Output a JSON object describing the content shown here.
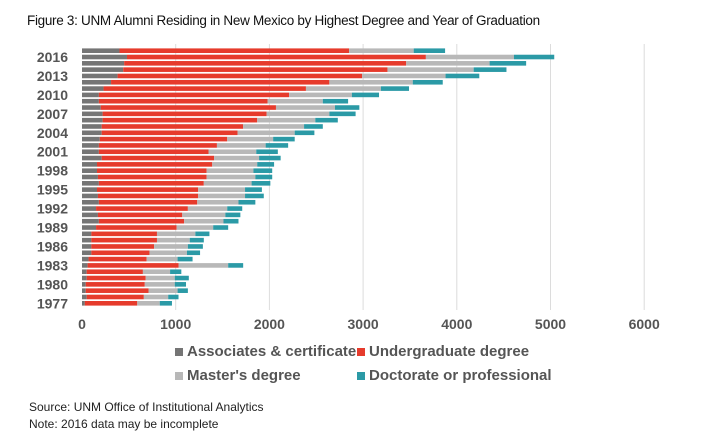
{
  "chart_data": {
    "type": "bar",
    "orientation": "horizontal",
    "stacked": true,
    "title": "Figure 3: UNM Alumni Residing in New Mexico by Highest Degree and Year of Graduation",
    "xlabel": "",
    "ylabel": "",
    "xlim": [
      0,
      6000
    ],
    "xticks": [
      "0",
      "1000",
      "2000",
      "3000",
      "4000",
      "5000",
      "6000"
    ],
    "grid": true,
    "legend_placement": "bottom",
    "categories": [
      2017,
      2016,
      2015,
      2014,
      2013,
      2012,
      2011,
      2010,
      2009,
      2008,
      2007,
      2006,
      2005,
      2004,
      2003,
      2002,
      2001,
      2000,
      1999,
      1998,
      1997,
      1996,
      1995,
      1994,
      1993,
      1992,
      1991,
      1990,
      1989,
      1988,
      1987,
      1986,
      1985,
      1984,
      1983,
      1982,
      1981,
      1980,
      1979,
      1978,
      1977
    ],
    "ytick_labels": [
      "2016",
      "2013",
      "2010",
      "2007",
      "2004",
      "2001",
      "1998",
      "1995",
      "1992",
      "1989",
      "1986",
      "1983",
      "1980",
      "1977"
    ],
    "series": [
      {
        "name": "Associates & certificate",
        "color": "#757575",
        "values": [
          400,
          480,
          450,
          440,
          380,
          310,
          230,
          180,
          180,
          200,
          220,
          220,
          210,
          210,
          190,
          180,
          180,
          210,
          160,
          160,
          170,
          180,
          160,
          170,
          180,
          150,
          170,
          180,
          150,
          100,
          100,
          100,
          100,
          70,
          60,
          50,
          50,
          40,
          40,
          50,
          30
        ]
      },
      {
        "name": "Undergraduate degree",
        "color": "#e63b2c",
        "values": [
          2450,
          3190,
          3010,
          2820,
          2610,
          2330,
          2160,
          2030,
          1800,
          1870,
          1750,
          1650,
          1510,
          1450,
          1360,
          1260,
          1170,
          1200,
          1230,
          1170,
          1160,
          1120,
          1080,
          1070,
          1050,
          980,
          900,
          910,
          860,
          700,
          700,
          670,
          620,
          620,
          970,
          600,
          630,
          630,
          670,
          610,
          560
        ]
      },
      {
        "name": "Master's degree",
        "color": "#b8b8b8",
        "values": [
          690,
          940,
          890,
          920,
          890,
          890,
          800,
          670,
          590,
          630,
          670,
          620,
          650,
          610,
          490,
          520,
          510,
          480,
          480,
          500,
          520,
          510,
          500,
          500,
          440,
          420,
          460,
          420,
          390,
          410,
          350,
          360,
          400,
          330,
          530,
          290,
          310,
          320,
          310,
          260,
          240
        ]
      },
      {
        "name": "Doctorate or professional",
        "color": "#2b9aa6",
        "values": [
          335,
          430,
          390,
          350,
          360,
          320,
          300,
          290,
          270,
          260,
          280,
          240,
          200,
          210,
          230,
          240,
          230,
          230,
          180,
          200,
          180,
          200,
          180,
          200,
          180,
          160,
          160,
          160,
          160,
          150,
          150,
          160,
          140,
          160,
          160,
          120,
          150,
          120,
          110,
          110,
          130
        ]
      }
    ]
  },
  "source": "Source:  UNM Office of Institutional Analytics",
  "note": "Note: 2016 data may be incomplete"
}
